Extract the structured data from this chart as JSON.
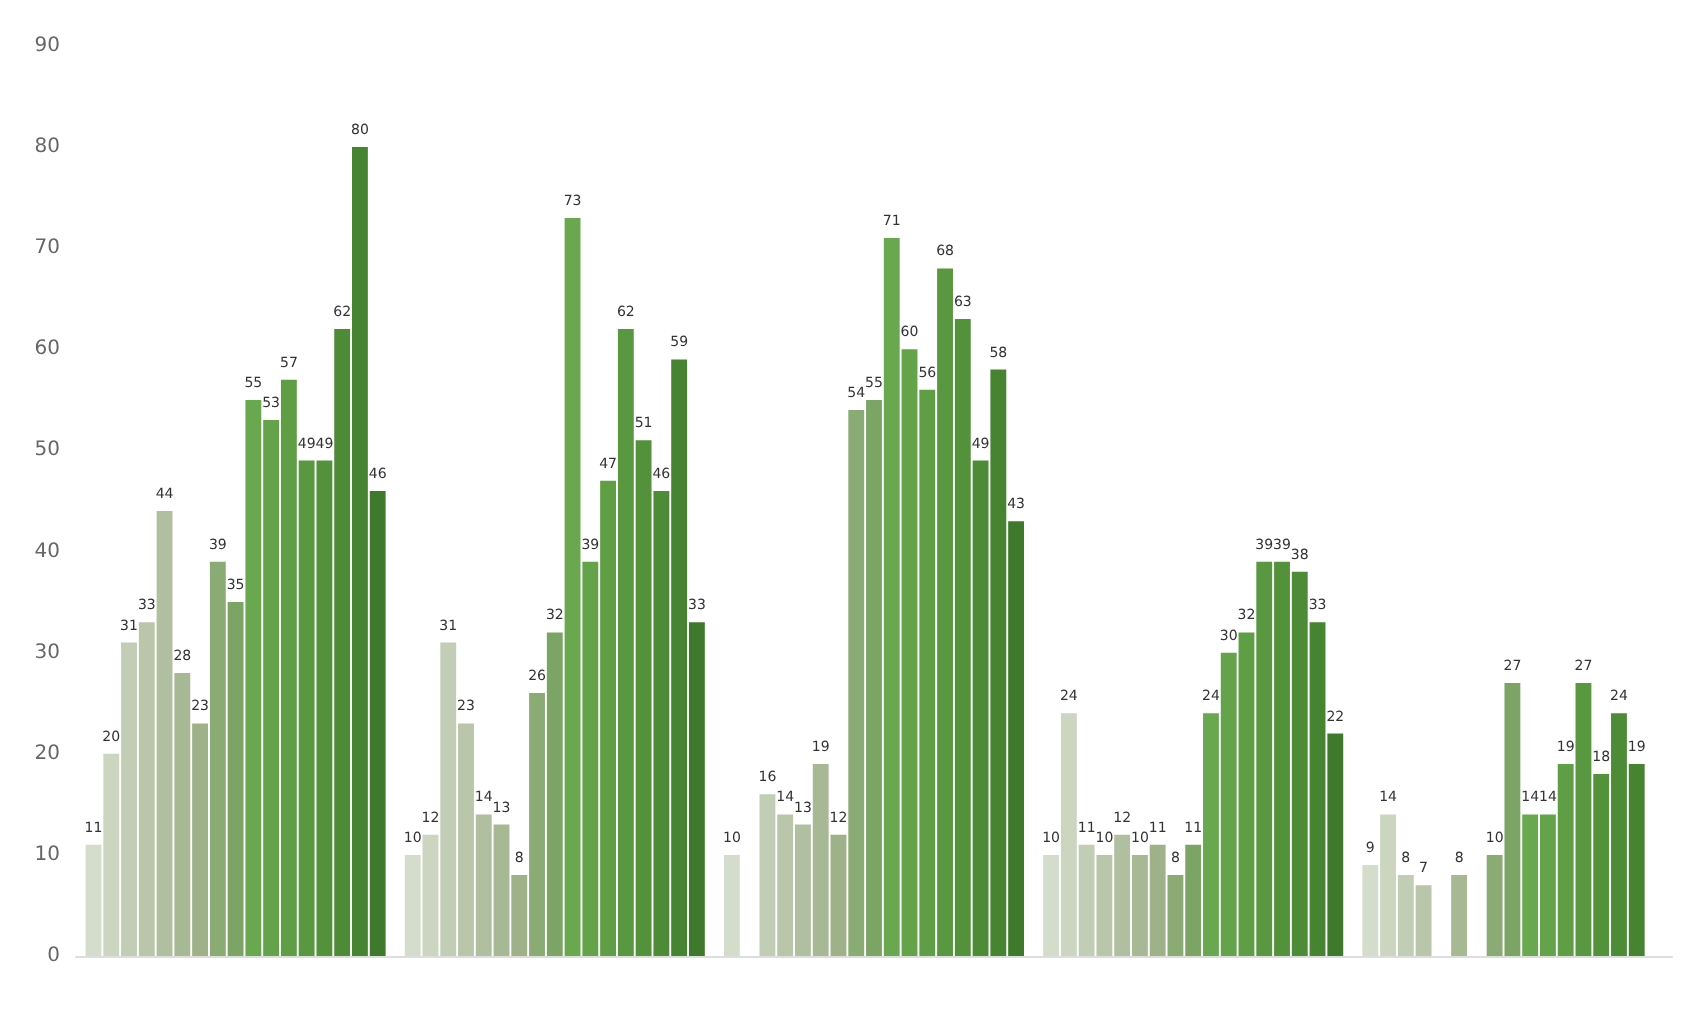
{
  "chart_data": {
    "type": "bar",
    "categories": [
      null,
      null,
      null,
      null,
      null
    ],
    "series": [
      {
        "color": "#d4dccb",
        "values": [
          11,
          10,
          10,
          10,
          9
        ]
      },
      {
        "color": "#cbd5c0",
        "values": [
          20,
          12,
          null,
          24,
          14
        ]
      },
      {
        "color": "#c2cdb5",
        "values": [
          31,
          31,
          16,
          11,
          8
        ]
      },
      {
        "color": "#b9c6aa",
        "values": [
          33,
          23,
          14,
          10,
          7
        ]
      },
      {
        "color": "#b0bf9f",
        "values": [
          44,
          14,
          13,
          12,
          null
        ]
      },
      {
        "color": "#a7b894",
        "values": [
          28,
          13,
          19,
          10,
          8
        ]
      },
      {
        "color": "#9eb189",
        "values": [
          23,
          8,
          12,
          11,
          null
        ]
      },
      {
        "color": "#8aab74",
        "values": [
          39,
          26,
          54,
          8,
          10
        ]
      },
      {
        "color": "#7ca565",
        "values": [
          35,
          32,
          55,
          11,
          27
        ]
      },
      {
        "color": "#6aa84f",
        "values": [
          55,
          73,
          71,
          24,
          14
        ]
      },
      {
        "color": "#65a34a",
        "values": [
          53,
          39,
          60,
          30,
          14
        ]
      },
      {
        "color": "#5f9e45",
        "values": [
          57,
          47,
          56,
          32,
          19
        ]
      },
      {
        "color": "#599840",
        "values": [
          49,
          62,
          68,
          39,
          27
        ]
      },
      {
        "color": "#53923b",
        "values": [
          49,
          51,
          63,
          39,
          18
        ]
      },
      {
        "color": "#4d8b36",
        "values": [
          62,
          46,
          49,
          38,
          24
        ]
      },
      {
        "color": "#478431",
        "values": [
          80,
          59,
          58,
          33,
          19
        ]
      },
      {
        "color": "#3f7a2c",
        "values": [
          46,
          33,
          43,
          22,
          null
        ]
      }
    ],
    "ylim": [
      0,
      90
    ],
    "yticks": [
      0,
      10,
      20,
      30,
      40,
      50,
      60,
      70,
      80,
      90
    ],
    "grid": false,
    "data_labels": true
  }
}
